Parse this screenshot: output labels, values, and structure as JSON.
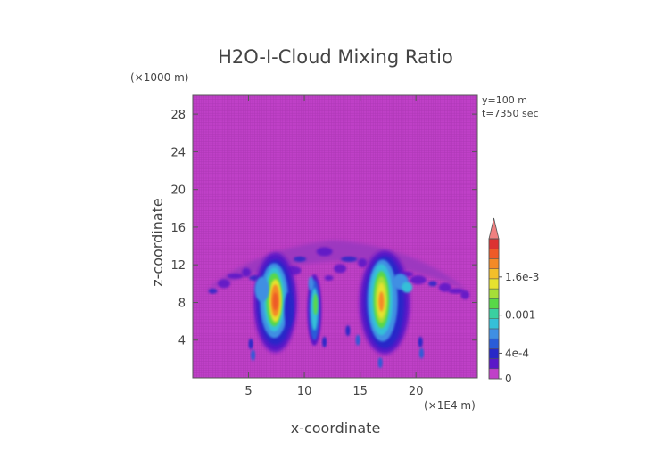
{
  "chart_data": {
    "type": "heatmap",
    "title": "H2O-I-Cloud Mixing Ratio",
    "xlabel": "x-coordinate",
    "ylabel": "z-coordinate",
    "x_unit": "(×1E4 m)",
    "y_unit": "(×1000 m)",
    "xlim": [
      0,
      25.5
    ],
    "ylim": [
      0,
      30
    ],
    "x_ticks": [
      5,
      10,
      15,
      20
    ],
    "y_ticks": [
      4,
      8,
      12,
      16,
      20,
      24,
      28
    ],
    "grid": true,
    "info_lines": [
      "y=100  m",
      "t=7350  sec"
    ],
    "colorbar": {
      "colors": [
        "#c040c8",
        "#5a18c8",
        "#2828c8",
        "#2a5cd8",
        "#3f8fe3",
        "#35c0d8",
        "#3ad0a0",
        "#58d848",
        "#a6de38",
        "#e6e22e",
        "#f3bf2a",
        "#f48a26",
        "#ee5a28",
        "#dc3232",
        "#f08080"
      ],
      "tick_labels": [
        "1.6e-3",
        "0.001",
        "4e-4",
        "0"
      ],
      "tick_values": [
        0.0016,
        0.001,
        0.0004,
        0
      ]
    },
    "cloud_regions": [
      {
        "x": [
          6.0,
          8.8
        ],
        "z": [
          3.0,
          11.5
        ],
        "peak": "high"
      },
      {
        "x": [
          10.5,
          11.4
        ],
        "z": [
          3.2,
          10.5
        ],
        "peak": "medium"
      },
      {
        "x": [
          16.3,
          18.3
        ],
        "z": [
          3.0,
          12.0
        ],
        "peak": "high"
      },
      {
        "x": [
          1.0,
          25.0
        ],
        "z": [
          8.5,
          14.5
        ],
        "peak": "low"
      }
    ]
  }
}
